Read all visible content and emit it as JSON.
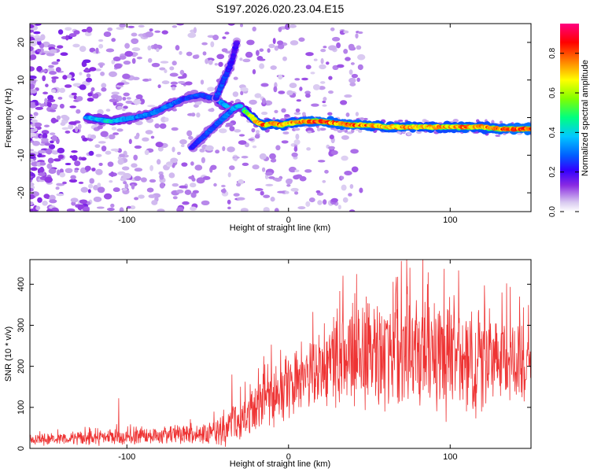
{
  "chart_data": [
    {
      "type": "heatmap",
      "title": "S197.2026.020.23.04.E15",
      "xlabel": "Height of straight line (km)",
      "ylabel": "Frequency (Hz)",
      "xlim": [
        -160,
        150
      ],
      "ylim": [
        -25,
        25
      ],
      "xticks": [
        -100,
        0,
        100
      ],
      "yticks": [
        -20,
        -10,
        0,
        10,
        20
      ],
      "xtick_labels": [
        "-100",
        "0",
        "100"
      ],
      "ytick_labels": [
        "-20",
        "-10",
        "0",
        "10",
        "20"
      ],
      "colorbar": {
        "label": "Normalized spectral amplitude",
        "range": [
          0,
          0.95
        ],
        "ticks": [
          0.0,
          0.2,
          0.4,
          0.6,
          0.8
        ],
        "tick_labels": [
          "0.0",
          "0.2",
          "0.4",
          "0.6",
          "0.8"
        ],
        "colormap": [
          "#ffffff",
          "#d8c8f0",
          "#8a2be2",
          "#3300ff",
          "#0060ff",
          "#00c8ff",
          "#00ff80",
          "#80ff00",
          "#ffff00",
          "#ff8000",
          "#ff0000",
          "#ff0080"
        ]
      },
      "ridge": {
        "x": [
          -125,
          -110,
          -95,
          -85,
          -75,
          -65,
          -55,
          -45,
          -35,
          -30,
          -25,
          -20,
          -15,
          -10,
          -5,
          0,
          10,
          20,
          30,
          40,
          50,
          60,
          70,
          80,
          90,
          100,
          110,
          120,
          130,
          140,
          150
        ],
        "y": [
          0,
          -1,
          0,
          1,
          3,
          5,
          6,
          5,
          2,
          3,
          1,
          -1,
          -2,
          -1.5,
          -2,
          -1.5,
          -1,
          -1,
          -1.5,
          -2,
          -2,
          -2.5,
          -2.5,
          -2.5,
          -2.5,
          -2.5,
          -2.5,
          -2.5,
          -3,
          -3,
          -3
        ],
        "amplitude": [
          0.4,
          0.45,
          0.35,
          0.35,
          0.35,
          0.3,
          0.3,
          0.3,
          0.45,
          0.5,
          0.6,
          0.8,
          0.85,
          0.8,
          0.85,
          0.8,
          0.85,
          0.9,
          0.85,
          0.9,
          0.85,
          0.8,
          0.85,
          0.8,
          0.8,
          0.8,
          0.85,
          0.8,
          0.85,
          0.9,
          0.9
        ]
      },
      "branch": {
        "x": [
          -60,
          -55,
          -50,
          -45,
          -40,
          -35,
          -32,
          -30
        ],
        "y": [
          -8,
          -6,
          -4,
          -2,
          0,
          2,
          3,
          3
        ],
        "amplitude": [
          0.25,
          0.3,
          0.3,
          0.3,
          0.35,
          0.35,
          0.4,
          0.45
        ]
      },
      "upper_branch": {
        "x": [
          -45,
          -40,
          -35,
          -32
        ],
        "y": [
          5,
          10,
          15,
          20
        ],
        "amplitude": [
          0.3,
          0.3,
          0.25,
          0.2
        ]
      }
    },
    {
      "type": "line",
      "title": "",
      "xlabel": "Height of straight line (km)",
      "ylabel": "SNR (10 * v/v)",
      "xlim": [
        -160,
        150
      ],
      "ylim": [
        0,
        460
      ],
      "xticks": [
        -100,
        0,
        100
      ],
      "yticks": [
        0,
        100,
        200,
        300,
        400
      ],
      "xtick_labels": [
        "-100",
        "0",
        "100"
      ],
      "ytick_labels": [
        "0",
        "100",
        "200",
        "300",
        "400"
      ],
      "color": "#ee3333",
      "envelope": {
        "x": [
          -160,
          -120,
          -80,
          -50,
          -40,
          -30,
          -20,
          -10,
          0,
          10,
          20,
          30,
          40,
          50,
          60,
          70,
          80,
          90,
          100,
          110,
          120,
          130,
          140,
          150
        ],
        "mean": [
          20,
          25,
          30,
          35,
          45,
          70,
          100,
          130,
          150,
          170,
          190,
          220,
          230,
          220,
          230,
          240,
          230,
          220,
          210,
          200,
          210,
          220,
          215,
          210
        ],
        "spread": [
          15,
          20,
          25,
          30,
          45,
          65,
          80,
          85,
          90,
          95,
          110,
          130,
          140,
          150,
          160,
          170,
          170,
          160,
          160,
          150,
          140,
          130,
          120,
          100
        ]
      },
      "peaks": {
        "x": [
          -105,
          -35,
          -5,
          8,
          28,
          48,
          73,
          75,
          86,
          110,
          132,
          143
        ],
        "y": [
          122,
          180,
          240,
          260,
          320,
          370,
          460,
          440,
          400,
          310,
          380,
          370
        ]
      }
    }
  ]
}
